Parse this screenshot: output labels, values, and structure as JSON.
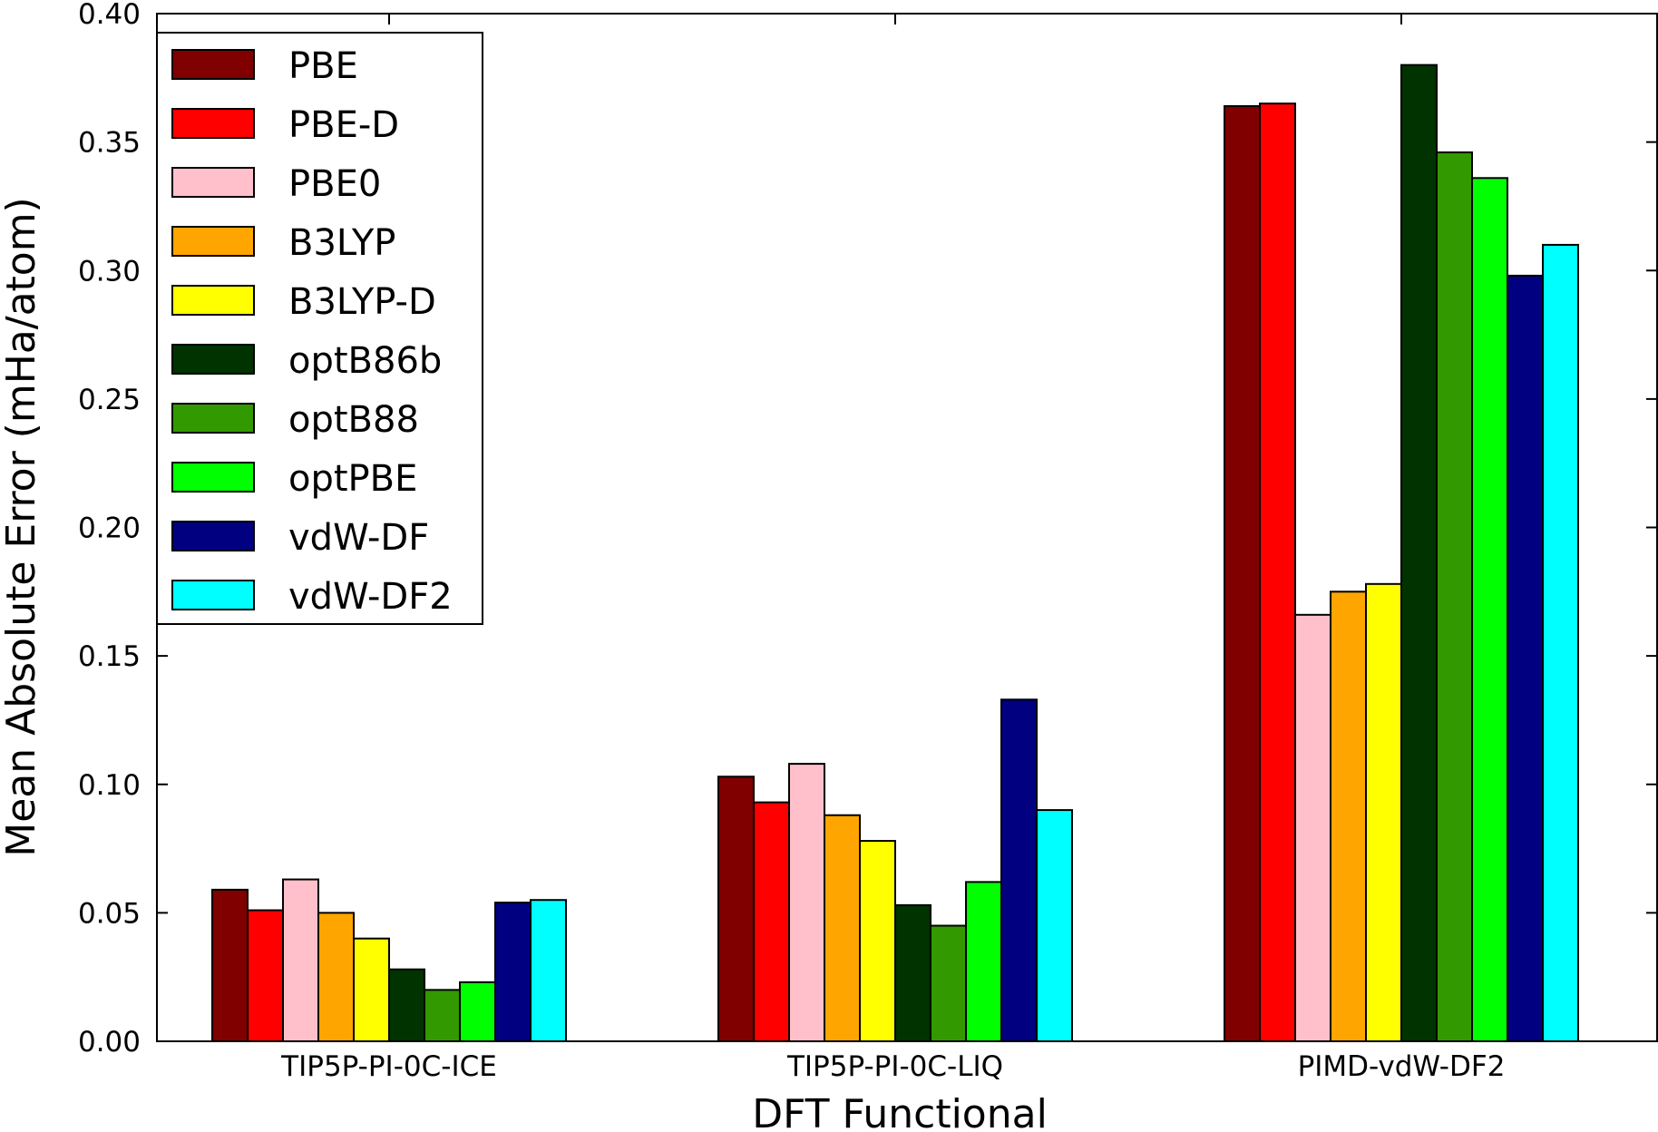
{
  "chart_data": {
    "type": "bar",
    "title": "",
    "xlabel": "DFT Functional",
    "ylabel": "Mean Absolute Error (mHa/atom)",
    "ylim": [
      0,
      0.4
    ],
    "yticks": [
      "0.00",
      "0.05",
      "0.10",
      "0.15",
      "0.20",
      "0.25",
      "0.30",
      "0.35",
      "0.40"
    ],
    "grid": false,
    "legend_position": "top-left",
    "categories": [
      "TIP5P-PI-0C-ICE",
      "TIP5P-PI-0C-LIQ",
      "PIMD-vdW-DF2"
    ],
    "series": [
      {
        "name": "PBE",
        "color": "#800000",
        "values": [
          0.059,
          0.103,
          0.364
        ]
      },
      {
        "name": "PBE-D",
        "color": "#ff0000",
        "values": [
          0.051,
          0.093,
          0.365
        ]
      },
      {
        "name": "PBE0",
        "color": "#ffc0cb",
        "values": [
          0.063,
          0.108,
          0.166
        ]
      },
      {
        "name": "B3LYP",
        "color": "#ffa500",
        "values": [
          0.05,
          0.088,
          0.175
        ]
      },
      {
        "name": "B3LYP-D",
        "color": "#ffff00",
        "values": [
          0.04,
          0.078,
          0.178
        ]
      },
      {
        "name": "optB86b",
        "color": "#003300",
        "values": [
          0.028,
          0.053,
          0.38
        ]
      },
      {
        "name": "optB88",
        "color": "#339900",
        "values": [
          0.02,
          0.045,
          0.346
        ]
      },
      {
        "name": "optPBE",
        "color": "#00ff00",
        "values": [
          0.023,
          0.062,
          0.336
        ]
      },
      {
        "name": "vdW-DF",
        "color": "#000080",
        "values": [
          0.054,
          0.133,
          0.298
        ]
      },
      {
        "name": "vdW-DF2",
        "color": "#00ffff",
        "values": [
          0.055,
          0.09,
          0.31
        ]
      }
    ]
  }
}
